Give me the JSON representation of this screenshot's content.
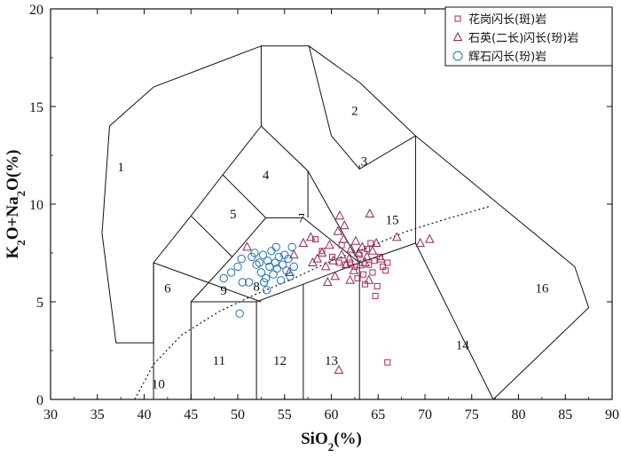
{
  "chart_data": {
    "type": "scatter",
    "title": "",
    "xlabel": "SiO",
    "xlabel_sub": "2",
    "xlabel_tail": "(%)",
    "ylabel_parts": [
      "K",
      "2",
      "O+Na",
      "2",
      "O(%)"
    ],
    "xlim": [
      30,
      90
    ],
    "ylim": [
      0,
      20
    ],
    "xticks": [
      30,
      35,
      40,
      45,
      50,
      55,
      60,
      65,
      70,
      75,
      80,
      85,
      90
    ],
    "yticks": [
      0,
      5,
      10,
      15,
      20
    ],
    "colors": {
      "granodiorite": "#b0294a",
      "quartz_diorite": "#8b2a5a",
      "gabbrodiorite": "#1f6fb2"
    },
    "legend": [
      {
        "label": "花岗闪长(斑)岩",
        "marker": "square"
      },
      {
        "label": "石英(二长)闪长(玢)岩",
        "marker": "triangle"
      },
      {
        "label": "辉石闪长(玢)岩",
        "marker": "circle"
      }
    ],
    "field_labels": [
      {
        "text": "1",
        "x": 37.5,
        "y": 11.9
      },
      {
        "text": "2",
        "x": 62.5,
        "y": 14.8
      },
      {
        "text": "3",
        "x": 63.5,
        "y": 12.2
      },
      {
        "text": "4",
        "x": 53.0,
        "y": 11.5
      },
      {
        "text": "5",
        "x": 49.5,
        "y": 9.5
      },
      {
        "text": "6",
        "x": 42.5,
        "y": 5.7
      },
      {
        "text": "7",
        "x": 56.8,
        "y": 9.3
      },
      {
        "text": "8",
        "x": 52.0,
        "y": 5.8
      },
      {
        "text": "9",
        "x": 48.5,
        "y": 5.6
      },
      {
        "text": "10",
        "x": 41.5,
        "y": 0.8
      },
      {
        "text": "11",
        "x": 48.0,
        "y": 2.0
      },
      {
        "text": "12",
        "x": 54.5,
        "y": 2.0
      },
      {
        "text": "13",
        "x": 60.0,
        "y": 2.0
      },
      {
        "text": "14",
        "x": 74.0,
        "y": 2.8
      },
      {
        "text": "15",
        "x": 66.5,
        "y": 9.2
      },
      {
        "text": "16",
        "x": 82.5,
        "y": 5.7
      }
    ],
    "field_boundaries": [
      [
        [
          41,
          0
        ],
        [
          41,
          7
        ],
        [
          45,
          9.4
        ],
        [
          48.4,
          11.5
        ],
        [
          52.5,
          14
        ],
        [
          52.5,
          18.1
        ],
        [
          57.6,
          18.1
        ],
        [
          63.1,
          16.2
        ],
        [
          69,
          13.5
        ],
        [
          63,
          11.8
        ],
        [
          63,
          12.0
        ]
      ],
      [
        [
          41,
          7
        ],
        [
          52.5,
          5
        ]
      ],
      [
        [
          45,
          0
        ],
        [
          45,
          5
        ],
        [
          52,
          5
        ],
        [
          57,
          5.9
        ],
        [
          63,
          7
        ],
        [
          69,
          8
        ]
      ],
      [
        [
          52,
          0
        ],
        [
          52,
          5
        ]
      ],
      [
        [
          57,
          0
        ],
        [
          57,
          5.9
        ]
      ],
      [
        [
          63,
          0
        ],
        [
          63,
          7
        ]
      ],
      [
        [
          69,
          8
        ],
        [
          69,
          13.5
        ]
      ],
      [
        [
          69,
          8
        ],
        [
          77.3,
          0
        ]
      ],
      [
        [
          77.3,
          0
        ],
        [
          87.5,
          4.7
        ],
        [
          86.0,
          6.8
        ],
        [
          69,
          13.5
        ]
      ],
      [
        [
          45,
          5
        ],
        [
          49.4,
          7.3
        ],
        [
          53,
          9.3
        ],
        [
          57,
          9.3
        ],
        [
          63,
          7
        ]
      ],
      [
        [
          45,
          9.4
        ],
        [
          49.4,
          7.3
        ]
      ],
      [
        [
          48.4,
          11.5
        ],
        [
          53,
          9.3
        ]
      ],
      [
        [
          52.5,
          14
        ],
        [
          57.5,
          11.7
        ],
        [
          63,
          7
        ]
      ],
      [
        [
          57.5,
          11.7
        ],
        [
          57.5,
          9.3
        ]
      ],
      [
        [
          52.5,
          14
        ],
        [
          52.5,
          14
        ]
      ],
      [
        [
          57.6,
          18.1
        ],
        [
          60.0,
          13.5
        ],
        [
          63,
          11.8
        ]
      ],
      [
        [
          41,
          7
        ],
        [
          41,
          2.9
        ],
        [
          37,
          2.9
        ],
        [
          35.5,
          8.5
        ],
        [
          36.3,
          14.0
        ],
        [
          41,
          16.0
        ],
        [
          52.5,
          18.1
        ]
      ]
    ],
    "dotted_curve": [
      [
        39,
        0
      ],
      [
        41,
        1.8
      ],
      [
        44,
        3.3
      ],
      [
        48,
        4.5
      ],
      [
        52,
        5.4
      ],
      [
        56,
        6.2
      ],
      [
        60,
        7.1
      ],
      [
        64,
        7.8
      ],
      [
        68,
        8.6
      ],
      [
        72,
        9.2
      ],
      [
        77,
        9.9
      ]
    ],
    "series": [
      {
        "name": "花岗闪长(斑)岩",
        "marker": "square",
        "points": [
          [
            58.3,
            8.2
          ],
          [
            59.0,
            7.6
          ],
          [
            60.1,
            7.3
          ],
          [
            61.1,
            7.9
          ],
          [
            62.0,
            7.0
          ],
          [
            62.5,
            6.8
          ],
          [
            63.0,
            7.4
          ],
          [
            63.4,
            6.4
          ],
          [
            63.8,
            7.7
          ],
          [
            64.0,
            6.9
          ],
          [
            64.2,
            8.0
          ],
          [
            64.4,
            6.5
          ],
          [
            64.6,
            7.1
          ],
          [
            64.9,
            5.8
          ],
          [
            65.2,
            7.3
          ],
          [
            65.5,
            6.8
          ],
          [
            65.8,
            6.6
          ],
          [
            66.0,
            7.0
          ],
          [
            63.6,
            5.9
          ],
          [
            62.8,
            6.2
          ],
          [
            61.5,
            6.9
          ],
          [
            64.7,
            5.3
          ],
          [
            60.8,
            7.0
          ],
          [
            66.0,
            1.9
          ]
        ]
      },
      {
        "name": "石英(二长)闪长(玢)岩",
        "marker": "triangle",
        "points": [
          [
            51.0,
            7.8
          ],
          [
            56.0,
            7.4
          ],
          [
            57.0,
            8.0
          ],
          [
            57.8,
            8.3
          ],
          [
            58.5,
            7.2
          ],
          [
            59.0,
            7.5
          ],
          [
            59.4,
            6.8
          ],
          [
            59.8,
            7.9
          ],
          [
            60.2,
            7.1
          ],
          [
            60.4,
            6.3
          ],
          [
            60.7,
            8.6
          ],
          [
            60.9,
            9.4
          ],
          [
            61.1,
            7.4
          ],
          [
            61.4,
            8.9
          ],
          [
            61.6,
            6.9
          ],
          [
            61.9,
            7.2
          ],
          [
            62.1,
            7.7
          ],
          [
            62.4,
            6.6
          ],
          [
            62.6,
            8.1
          ],
          [
            62.9,
            7.5
          ],
          [
            63.1,
            6.9
          ],
          [
            63.3,
            7.8
          ],
          [
            63.6,
            7.0
          ],
          [
            63.8,
            7.3
          ],
          [
            64.1,
            9.5
          ],
          [
            64.4,
            7.6
          ],
          [
            64.8,
            8.0
          ],
          [
            65.3,
            7.2
          ],
          [
            67.0,
            8.3
          ],
          [
            69.5,
            8.0
          ],
          [
            70.5,
            8.2
          ],
          [
            55.5,
            6.5
          ],
          [
            59.6,
            6.0
          ],
          [
            62.0,
            6.1
          ],
          [
            60.8,
            1.5
          ],
          [
            58.0,
            7.0
          ],
          [
            64.0,
            6.1
          ],
          [
            61.3,
            8.2
          ]
        ]
      },
      {
        "name": "辉石闪长(玢)岩",
        "marker": "circle",
        "points": [
          [
            48.5,
            6.2
          ],
          [
            49.3,
            6.5
          ],
          [
            50.0,
            6.8
          ],
          [
            50.4,
            7.2
          ],
          [
            50.5,
            6.0
          ],
          [
            50.2,
            4.4
          ],
          [
            51.5,
            7.3
          ],
          [
            51.8,
            7.5
          ],
          [
            52.0,
            6.9
          ],
          [
            52.3,
            7.0
          ],
          [
            52.5,
            6.5
          ],
          [
            52.7,
            7.4
          ],
          [
            53.0,
            6.2
          ],
          [
            53.2,
            7.1
          ],
          [
            53.4,
            6.8
          ],
          [
            53.6,
            7.6
          ],
          [
            53.8,
            6.4
          ],
          [
            54.0,
            7.0
          ],
          [
            54.2,
            6.7
          ],
          [
            54.4,
            7.3
          ],
          [
            54.6,
            6.1
          ],
          [
            54.8,
            6.9
          ],
          [
            55.0,
            7.4
          ],
          [
            55.2,
            6.6
          ],
          [
            55.4,
            7.2
          ],
          [
            55.6,
            6.3
          ],
          [
            55.8,
            7.8
          ],
          [
            56.0,
            6.8
          ],
          [
            53.1,
            5.6
          ],
          [
            51.2,
            6.0
          ],
          [
            54.1,
            7.8
          ],
          [
            52.8,
            6.0
          ]
        ]
      }
    ]
  }
}
